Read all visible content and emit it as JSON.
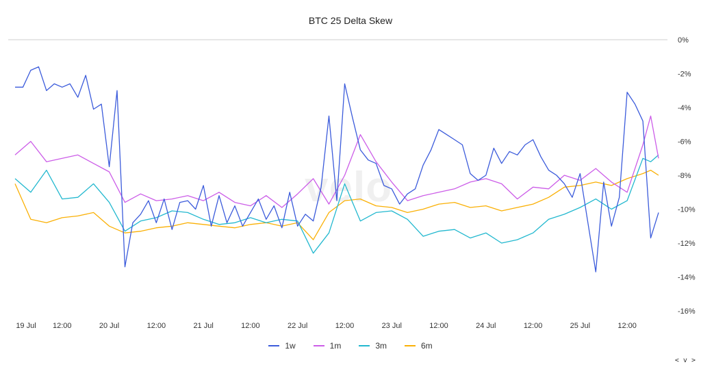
{
  "chart_data": {
    "type": "line",
    "title": "BTC 25 Delta Skew",
    "watermark": "velo",
    "xlabel": "",
    "ylabel": "",
    "x_ticks": [
      "19 Jul",
      "12:00",
      "20 Jul",
      "12:00",
      "21 Jul",
      "12:00",
      "22 Jul",
      "12:00",
      "23 Jul",
      "12:00",
      "24 Jul",
      "12:00",
      "25 Jul",
      "12:00"
    ],
    "y_ticks": [
      "0%",
      "-2%",
      "-4%",
      "-6%",
      "-8%",
      "-10%",
      "-12%",
      "-14%",
      "-16%"
    ],
    "ylim": [
      -16,
      0
    ],
    "xlim_days": [
      "2024-07-19T00:00",
      "2024-07-25T20:00"
    ],
    "legend_position": "bottom-center",
    "grid": false,
    "series": [
      {
        "name": "1w",
        "color": "#3b5bdb",
        "x": [
          "19 Jul 00:00",
          "19 Jul 02:00",
          "19 Jul 04:00",
          "19 Jul 06:00",
          "19 Jul 08:00",
          "19 Jul 10:00",
          "19 Jul 12:00",
          "19 Jul 14:00",
          "19 Jul 16:00",
          "19 Jul 18:00",
          "19 Jul 20:00",
          "19 Jul 22:00",
          "20 Jul 00:00",
          "20 Jul 02:00",
          "20 Jul 04:00",
          "20 Jul 06:00",
          "20 Jul 08:00",
          "20 Jul 10:00",
          "20 Jul 12:00",
          "20 Jul 14:00",
          "20 Jul 16:00",
          "20 Jul 18:00",
          "20 Jul 20:00",
          "20 Jul 22:00",
          "21 Jul 00:00",
          "21 Jul 02:00",
          "21 Jul 04:00",
          "21 Jul 06:00",
          "21 Jul 08:00",
          "21 Jul 10:00",
          "21 Jul 12:00",
          "21 Jul 14:00",
          "21 Jul 16:00",
          "21 Jul 18:00",
          "21 Jul 20:00",
          "21 Jul 22:00",
          "22 Jul 00:00",
          "22 Jul 02:00",
          "22 Jul 04:00",
          "22 Jul 06:00",
          "22 Jul 08:00",
          "22 Jul 10:00",
          "22 Jul 12:00",
          "22 Jul 14:00",
          "22 Jul 16:00",
          "22 Jul 18:00",
          "22 Jul 20:00",
          "22 Jul 22:00",
          "23 Jul 00:00",
          "23 Jul 02:00",
          "23 Jul 04:00",
          "23 Jul 06:00",
          "23 Jul 08:00",
          "23 Jul 10:00",
          "23 Jul 12:00",
          "23 Jul 14:00",
          "23 Jul 16:00",
          "23 Jul 18:00",
          "23 Jul 20:00",
          "23 Jul 22:00",
          "24 Jul 00:00",
          "24 Jul 02:00",
          "24 Jul 04:00",
          "24 Jul 06:00",
          "24 Jul 08:00",
          "24 Jul 10:00",
          "24 Jul 12:00",
          "24 Jul 14:00",
          "24 Jul 16:00",
          "24 Jul 18:00",
          "24 Jul 20:00",
          "24 Jul 22:00",
          "25 Jul 00:00",
          "25 Jul 02:00",
          "25 Jul 04:00",
          "25 Jul 06:00",
          "25 Jul 08:00",
          "25 Jul 10:00",
          "25 Jul 12:00",
          "25 Jul 14:00",
          "25 Jul 16:00",
          "25 Jul 18:00",
          "25 Jul 20:00"
        ],
        "values": [
          -2.8,
          -2.8,
          -1.8,
          -1.6,
          -3.0,
          -2.6,
          -2.8,
          -2.6,
          -3.4,
          -2.1,
          -4.1,
          -3.8,
          -7.5,
          -3.0,
          -13.4,
          -10.8,
          -10.3,
          -9.5,
          -10.8,
          -9.4,
          -11.2,
          -9.6,
          -9.5,
          -10.0,
          -8.6,
          -11.0,
          -9.2,
          -10.8,
          -9.8,
          -11.0,
          -10.2,
          -9.4,
          -10.6,
          -9.8,
          -11.1,
          -9.0,
          -11.0,
          -10.3,
          -10.7,
          -8.7,
          -4.5,
          -9.5,
          -2.6,
          -4.6,
          -6.5,
          -7.1,
          -7.3,
          -8.6,
          -8.8,
          -9.7,
          -9.1,
          -8.8,
          -7.4,
          -6.5,
          -5.3,
          -5.6,
          -5.9,
          -6.2,
          -7.9,
          -8.3,
          -8.0,
          -6.4,
          -7.3,
          -6.6,
          -6.8,
          -6.2,
          -5.9,
          -6.9,
          -7.7,
          -8.0,
          -8.5,
          -9.3,
          -7.9,
          -10.8,
          -13.7,
          -8.4,
          -11.0,
          -9.3,
          -3.1,
          -3.8,
          -4.8,
          -11.7,
          -10.2
        ]
      },
      {
        "name": "1m",
        "color": "#cc5de8",
        "x": [
          "19 Jul 00:00",
          "19 Jul 04:00",
          "19 Jul 08:00",
          "19 Jul 12:00",
          "19 Jul 16:00",
          "19 Jul 20:00",
          "20 Jul 00:00",
          "20 Jul 04:00",
          "20 Jul 08:00",
          "20 Jul 12:00",
          "20 Jul 16:00",
          "20 Jul 20:00",
          "21 Jul 00:00",
          "21 Jul 04:00",
          "21 Jul 08:00",
          "21 Jul 12:00",
          "21 Jul 16:00",
          "21 Jul 20:00",
          "22 Jul 00:00",
          "22 Jul 04:00",
          "22 Jul 08:00",
          "22 Jul 12:00",
          "22 Jul 16:00",
          "22 Jul 20:00",
          "23 Jul 00:00",
          "23 Jul 04:00",
          "23 Jul 08:00",
          "23 Jul 12:00",
          "23 Jul 16:00",
          "23 Jul 20:00",
          "24 Jul 00:00",
          "24 Jul 04:00",
          "24 Jul 08:00",
          "24 Jul 12:00",
          "24 Jul 16:00",
          "24 Jul 20:00",
          "25 Jul 00:00",
          "25 Jul 04:00",
          "25 Jul 08:00",
          "25 Jul 12:00",
          "25 Jul 16:00",
          "25 Jul 18:00",
          "25 Jul 20:00"
        ],
        "values": [
          -6.8,
          -6.0,
          -7.2,
          -7.0,
          -6.8,
          -7.3,
          -7.8,
          -9.6,
          -9.1,
          -9.5,
          -9.4,
          -9.2,
          -9.5,
          -9.0,
          -9.6,
          -9.8,
          -9.2,
          -9.9,
          -9.1,
          -8.2,
          -9.7,
          -8.0,
          -5.6,
          -7.2,
          -8.4,
          -9.5,
          -9.2,
          -9.0,
          -8.8,
          -8.4,
          -8.2,
          -8.5,
          -9.4,
          -8.7,
          -8.8,
          -8.0,
          -8.3,
          -7.6,
          -8.4,
          -9.0,
          -6.2,
          -4.5,
          -7.0
        ]
      },
      {
        "name": "3m",
        "color": "#22b8cf",
        "x": [
          "19 Jul 00:00",
          "19 Jul 04:00",
          "19 Jul 08:00",
          "19 Jul 12:00",
          "19 Jul 16:00",
          "19 Jul 20:00",
          "20 Jul 00:00",
          "20 Jul 04:00",
          "20 Jul 08:00",
          "20 Jul 12:00",
          "20 Jul 16:00",
          "20 Jul 20:00",
          "21 Jul 00:00",
          "21 Jul 04:00",
          "21 Jul 08:00",
          "21 Jul 12:00",
          "21 Jul 16:00",
          "21 Jul 20:00",
          "22 Jul 00:00",
          "22 Jul 04:00",
          "22 Jul 08:00",
          "22 Jul 12:00",
          "22 Jul 16:00",
          "22 Jul 20:00",
          "23 Jul 00:00",
          "23 Jul 04:00",
          "23 Jul 08:00",
          "23 Jul 12:00",
          "23 Jul 16:00",
          "23 Jul 20:00",
          "24 Jul 00:00",
          "24 Jul 04:00",
          "24 Jul 08:00",
          "24 Jul 12:00",
          "24 Jul 16:00",
          "24 Jul 20:00",
          "25 Jul 00:00",
          "25 Jul 04:00",
          "25 Jul 08:00",
          "25 Jul 12:00",
          "25 Jul 16:00",
          "25 Jul 18:00",
          "25 Jul 20:00"
        ],
        "values": [
          -8.2,
          -9.0,
          -7.7,
          -9.4,
          -9.3,
          -8.5,
          -9.6,
          -11.3,
          -10.7,
          -10.5,
          -10.1,
          -10.2,
          -10.6,
          -10.9,
          -10.8,
          -10.5,
          -10.8,
          -10.6,
          -10.7,
          -12.6,
          -11.4,
          -8.5,
          -10.7,
          -10.2,
          -10.1,
          -10.6,
          -11.6,
          -11.3,
          -11.2,
          -11.7,
          -11.4,
          -12.0,
          -11.8,
          -11.4,
          -10.6,
          -10.3,
          -9.9,
          -9.4,
          -10.0,
          -9.5,
          -7.0,
          -7.2,
          -6.8
        ]
      },
      {
        "name": "6m",
        "color": "#fab005",
        "x": [
          "19 Jul 00:00",
          "19 Jul 04:00",
          "19 Jul 08:00",
          "19 Jul 12:00",
          "19 Jul 16:00",
          "19 Jul 20:00",
          "20 Jul 00:00",
          "20 Jul 04:00",
          "20 Jul 08:00",
          "20 Jul 12:00",
          "20 Jul 16:00",
          "20 Jul 20:00",
          "21 Jul 00:00",
          "21 Jul 04:00",
          "21 Jul 08:00",
          "21 Jul 12:00",
          "21 Jul 16:00",
          "21 Jul 20:00",
          "22 Jul 00:00",
          "22 Jul 04:00",
          "22 Jul 08:00",
          "22 Jul 12:00",
          "22 Jul 16:00",
          "22 Jul 20:00",
          "23 Jul 00:00",
          "23 Jul 04:00",
          "23 Jul 08:00",
          "23 Jul 12:00",
          "23 Jul 16:00",
          "23 Jul 20:00",
          "24 Jul 00:00",
          "24 Jul 04:00",
          "24 Jul 08:00",
          "24 Jul 12:00",
          "24 Jul 16:00",
          "24 Jul 20:00",
          "25 Jul 00:00",
          "25 Jul 04:00",
          "25 Jul 08:00",
          "25 Jul 12:00",
          "25 Jul 16:00",
          "25 Jul 18:00",
          "25 Jul 20:00"
        ],
        "values": [
          -8.5,
          -10.6,
          -10.8,
          -10.5,
          -10.4,
          -10.2,
          -11.0,
          -11.4,
          -11.3,
          -11.1,
          -11.0,
          -10.8,
          -10.9,
          -11.0,
          -11.1,
          -10.9,
          -10.8,
          -11.0,
          -10.8,
          -11.8,
          -10.2,
          -9.5,
          -9.4,
          -9.8,
          -9.9,
          -10.2,
          -10.0,
          -9.7,
          -9.6,
          -9.9,
          -9.8,
          -10.1,
          -9.9,
          -9.7,
          -9.3,
          -8.7,
          -8.6,
          -8.4,
          -8.6,
          -8.2,
          -7.9,
          -7.7,
          -8.0
        ]
      }
    ]
  },
  "ui": {
    "corner_nav": "< v >"
  }
}
